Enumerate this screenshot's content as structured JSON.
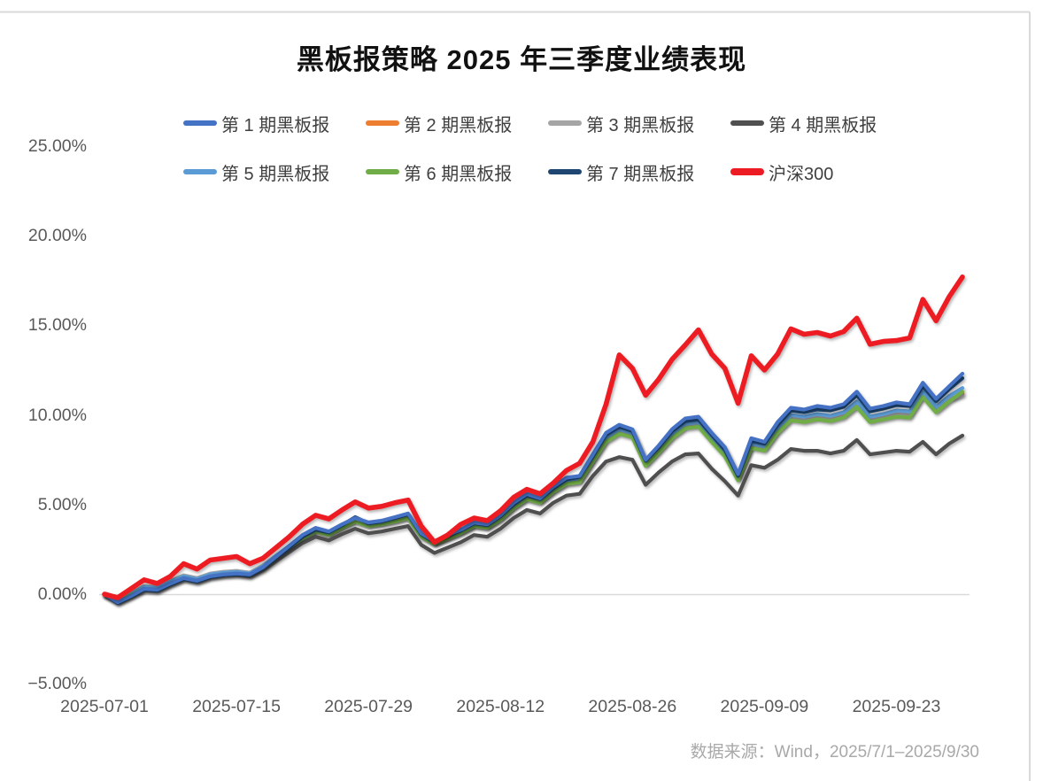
{
  "title": "黑板报策略 2025 年三季度业绩表现",
  "source_note": "数据来源：Wind，2025/7/1–2025/9/30",
  "colors": {
    "background": "#ffffff",
    "title_text": "#111111",
    "axis_text": "#595959",
    "legend_text": "#3f3f3f",
    "source_text": "#a9a9a9",
    "gridline": "#d9d9d9",
    "frame_border": "#d9d9d9"
  },
  "chart_data": {
    "type": "line",
    "title": "黑板报策略 2025 年三季度业绩表现",
    "xlabel": "",
    "ylabel": "",
    "ylim": [
      -5,
      25
    ],
    "grid": "zero-line-only",
    "legend_position": "top",
    "y_ticks": [
      {
        "label": "25.00%",
        "value": 25
      },
      {
        "label": "20.00%",
        "value": 20
      },
      {
        "label": "15.00%",
        "value": 15
      },
      {
        "label": "10.00%",
        "value": 10
      },
      {
        "label": "5.00%",
        "value": 5
      },
      {
        "label": "0.00%",
        "value": 0
      },
      {
        "label": "−5.00%",
        "value": -5
      }
    ],
    "x_ticks": [
      {
        "label": "2025-07-01",
        "index": 0
      },
      {
        "label": "2025-07-15",
        "index": 10
      },
      {
        "label": "2025-07-29",
        "index": 20
      },
      {
        "label": "2025-08-12",
        "index": 30
      },
      {
        "label": "2025-08-26",
        "index": 40
      },
      {
        "label": "2025-09-09",
        "index": 50
      },
      {
        "label": "2025-09-23",
        "index": 60
      }
    ],
    "x": [
      "2025-07-01",
      "2025-07-02",
      "2025-07-03",
      "2025-07-04",
      "2025-07-07",
      "2025-07-08",
      "2025-07-09",
      "2025-07-10",
      "2025-07-11",
      "2025-07-14",
      "2025-07-15",
      "2025-07-16",
      "2025-07-17",
      "2025-07-18",
      "2025-07-21",
      "2025-07-22",
      "2025-07-23",
      "2025-07-24",
      "2025-07-25",
      "2025-07-28",
      "2025-07-29",
      "2025-07-30",
      "2025-07-31",
      "2025-08-01",
      "2025-08-04",
      "2025-08-05",
      "2025-08-06",
      "2025-08-07",
      "2025-08-08",
      "2025-08-11",
      "2025-08-12",
      "2025-08-13",
      "2025-08-14",
      "2025-08-15",
      "2025-08-18",
      "2025-08-19",
      "2025-08-20",
      "2025-08-21",
      "2025-08-22",
      "2025-08-25",
      "2025-08-26",
      "2025-08-27",
      "2025-08-28",
      "2025-08-29",
      "2025-09-01",
      "2025-09-02",
      "2025-09-03",
      "2025-09-04",
      "2025-09-05",
      "2025-09-08",
      "2025-09-09",
      "2025-09-10",
      "2025-09-11",
      "2025-09-12",
      "2025-09-15",
      "2025-09-16",
      "2025-09-17",
      "2025-09-18",
      "2025-09-19",
      "2025-09-22",
      "2025-09-23",
      "2025-09-24",
      "2025-09-25",
      "2025-09-26",
      "2025-09-29",
      "2025-09-30"
    ],
    "draw_order": [
      1,
      2,
      4,
      5,
      3,
      6,
      0,
      7
    ],
    "series": [
      {
        "name": "第 1 期黑板报",
        "color": "#4472C4",
        "line_width": 4.2,
        "values": [
          0.0,
          -0.45,
          -0.1,
          0.3,
          0.25,
          0.6,
          0.9,
          0.75,
          1.0,
          1.1,
          1.15,
          1.1,
          1.5,
          2.1,
          2.7,
          3.3,
          3.7,
          3.5,
          3.9,
          4.25,
          4.0,
          4.1,
          4.3,
          4.5,
          3.4,
          2.95,
          3.3,
          3.6,
          4.0,
          3.9,
          4.4,
          5.1,
          5.6,
          5.35,
          6.0,
          6.5,
          6.6,
          7.8,
          9.0,
          9.45,
          9.2,
          7.5,
          8.3,
          9.2,
          9.8,
          9.9,
          9.0,
          8.2,
          6.7,
          8.7,
          8.5,
          9.6,
          10.4,
          10.3,
          10.5,
          10.4,
          10.6,
          11.3,
          10.35,
          10.5,
          10.7,
          10.6,
          11.8,
          10.9,
          11.6,
          12.3
        ]
      },
      {
        "name": "第 2 期黑板报",
        "color": "#ED7D31",
        "line_width": 4.2,
        "values": [
          0.0,
          -0.4,
          -0.05,
          0.35,
          0.3,
          0.65,
          0.95,
          0.8,
          1.05,
          1.15,
          1.2,
          1.1,
          1.5,
          2.05,
          2.6,
          3.15,
          3.55,
          3.35,
          3.75,
          4.1,
          3.85,
          3.95,
          4.1,
          4.3,
          3.25,
          2.85,
          3.15,
          3.45,
          3.85,
          3.75,
          4.2,
          4.85,
          5.35,
          5.15,
          5.75,
          6.2,
          6.3,
          7.45,
          8.6,
          9.05,
          8.85,
          7.25,
          8.0,
          8.8,
          9.35,
          9.45,
          8.6,
          7.8,
          6.45,
          8.25,
          8.1,
          9.1,
          9.8,
          9.7,
          9.85,
          9.75,
          9.95,
          10.55,
          9.7,
          9.85,
          10.0,
          9.95,
          11.1,
          10.25,
          10.85,
          11.2
        ]
      },
      {
        "name": "第 3 期黑板报",
        "color": "#A5A5A5",
        "line_width": 4.2,
        "values": [
          0.0,
          -0.3,
          0.05,
          0.45,
          0.4,
          0.75,
          1.05,
          0.9,
          1.15,
          1.25,
          1.3,
          1.2,
          1.6,
          2.15,
          2.65,
          3.2,
          3.6,
          3.4,
          3.8,
          4.15,
          3.9,
          4.0,
          4.15,
          4.35,
          3.3,
          2.85,
          3.15,
          3.5,
          3.85,
          3.75,
          4.25,
          4.9,
          5.4,
          5.2,
          5.8,
          6.25,
          6.35,
          7.5,
          8.65,
          9.1,
          8.9,
          7.3,
          8.05,
          8.85,
          9.4,
          9.5,
          8.65,
          7.85,
          6.5,
          8.3,
          8.15,
          9.15,
          9.85,
          9.75,
          9.9,
          9.8,
          10.0,
          10.6,
          9.75,
          9.9,
          10.05,
          10.0,
          11.15,
          10.3,
          10.9,
          11.1
        ]
      },
      {
        "name": "第 4 期黑板报",
        "color": "#505050",
        "line_width": 4.2,
        "values": [
          0.0,
          -0.45,
          -0.1,
          0.25,
          0.2,
          0.55,
          0.85,
          0.7,
          0.95,
          1.05,
          1.1,
          1.0,
          1.35,
          1.85,
          2.35,
          2.85,
          3.2,
          3.0,
          3.35,
          3.65,
          3.4,
          3.5,
          3.65,
          3.8,
          2.75,
          2.3,
          2.6,
          2.9,
          3.3,
          3.2,
          3.65,
          4.25,
          4.7,
          4.5,
          5.1,
          5.5,
          5.6,
          6.6,
          7.4,
          7.65,
          7.5,
          6.1,
          6.8,
          7.4,
          7.8,
          7.85,
          7.0,
          6.3,
          5.5,
          7.2,
          7.05,
          7.5,
          8.1,
          8.0,
          8.0,
          7.85,
          8.0,
          8.6,
          7.8,
          7.9,
          8.0,
          7.95,
          8.5,
          7.8,
          8.4,
          8.85
        ]
      },
      {
        "name": "第 5 期黑板报",
        "color": "#5B9BD5",
        "line_width": 4.2,
        "values": [
          0.0,
          -0.35,
          0.0,
          0.4,
          0.35,
          0.7,
          1.0,
          0.85,
          1.1,
          1.2,
          1.25,
          1.15,
          1.55,
          2.15,
          2.7,
          3.25,
          3.65,
          3.45,
          3.85,
          4.2,
          3.95,
          4.05,
          4.2,
          4.4,
          3.35,
          2.9,
          3.2,
          3.5,
          3.9,
          3.8,
          4.3,
          4.95,
          5.45,
          5.25,
          5.85,
          6.35,
          6.45,
          7.6,
          8.75,
          9.2,
          9.0,
          7.35,
          8.1,
          8.95,
          9.5,
          9.6,
          8.75,
          7.95,
          6.55,
          8.4,
          8.25,
          9.25,
          10.0,
          9.9,
          10.05,
          9.95,
          10.15,
          10.75,
          9.9,
          10.05,
          10.25,
          10.2,
          11.3,
          10.45,
          11.05,
          11.5
        ]
      },
      {
        "name": "第 6 期黑板报",
        "color": "#70AD47",
        "line_width": 4.2,
        "values": [
          0.0,
          -0.4,
          -0.05,
          0.3,
          0.25,
          0.6,
          0.9,
          0.75,
          1.0,
          1.1,
          1.15,
          1.05,
          1.45,
          2.0,
          2.55,
          3.1,
          3.5,
          3.3,
          3.7,
          4.05,
          3.8,
          3.9,
          4.05,
          4.25,
          3.2,
          2.8,
          3.1,
          3.4,
          3.8,
          3.7,
          4.15,
          4.8,
          5.3,
          5.1,
          5.7,
          6.15,
          6.25,
          7.4,
          8.5,
          8.95,
          8.75,
          7.15,
          7.9,
          8.7,
          9.25,
          9.35,
          8.5,
          7.7,
          6.35,
          8.15,
          8.0,
          9.0,
          9.7,
          9.6,
          9.75,
          9.65,
          9.85,
          10.45,
          9.6,
          9.75,
          9.9,
          9.85,
          11.0,
          10.15,
          10.75,
          11.3
        ]
      },
      {
        "name": "第 7 期黑板报",
        "color": "#1F4572",
        "line_width": 4.2,
        "values": [
          0.0,
          -0.5,
          -0.15,
          0.25,
          0.2,
          0.55,
          0.85,
          0.7,
          0.95,
          1.05,
          1.1,
          1.05,
          1.45,
          2.05,
          2.6,
          3.2,
          3.6,
          3.45,
          3.85,
          4.3,
          3.95,
          4.05,
          4.25,
          4.45,
          3.35,
          2.9,
          3.25,
          3.55,
          3.95,
          3.85,
          4.35,
          5.0,
          5.5,
          5.3,
          5.9,
          6.4,
          6.55,
          7.7,
          8.9,
          9.35,
          9.1,
          7.45,
          8.2,
          9.1,
          9.65,
          9.75,
          8.9,
          8.05,
          6.6,
          8.55,
          8.4,
          9.45,
          10.25,
          10.15,
          10.3,
          10.25,
          10.45,
          11.1,
          10.2,
          10.35,
          10.55,
          10.5,
          11.6,
          10.75,
          11.45,
          12.05
        ]
      },
      {
        "name": "沪深300",
        "color": "#ED1C24",
        "line_width": 5.6,
        "values": [
          0.0,
          -0.2,
          0.3,
          0.8,
          0.6,
          1.0,
          1.7,
          1.4,
          1.9,
          2.0,
          2.1,
          1.7,
          2.0,
          2.6,
          3.2,
          3.9,
          4.4,
          4.2,
          4.7,
          5.15,
          4.8,
          4.9,
          5.1,
          5.25,
          3.8,
          2.9,
          3.3,
          3.9,
          4.25,
          4.1,
          4.65,
          5.4,
          5.85,
          5.6,
          6.2,
          6.9,
          7.3,
          8.5,
          10.6,
          13.35,
          12.6,
          11.1,
          12.0,
          13.1,
          13.9,
          14.75,
          13.4,
          12.6,
          10.65,
          13.3,
          12.5,
          13.4,
          14.8,
          14.5,
          14.6,
          14.4,
          14.65,
          15.4,
          13.95,
          14.1,
          14.15,
          14.3,
          16.45,
          15.25,
          16.6,
          17.7
        ]
      }
    ]
  }
}
